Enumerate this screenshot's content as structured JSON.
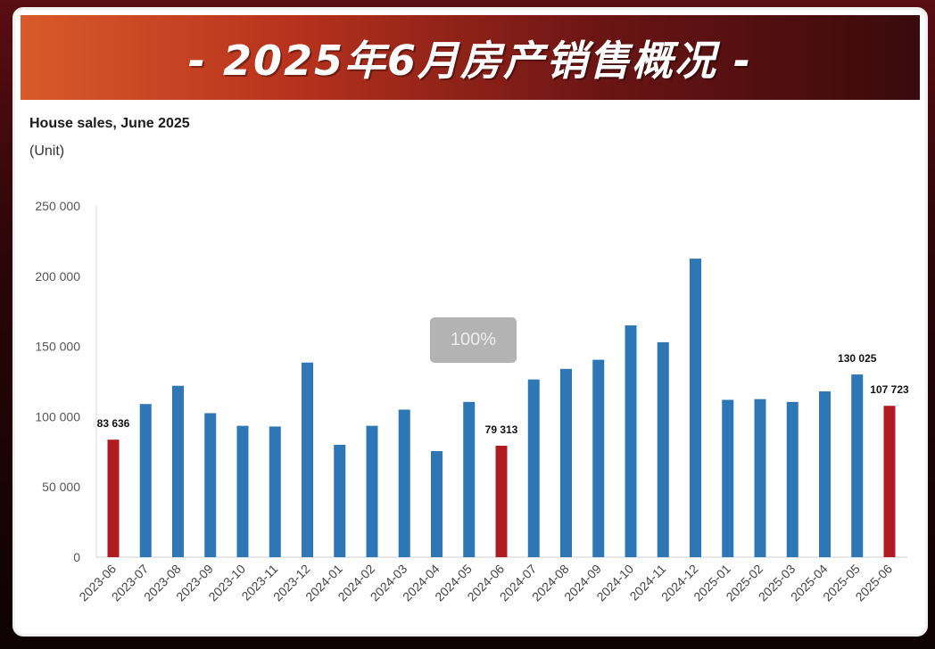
{
  "banner": {
    "title": "- 2025年6月房产销售概况 -"
  },
  "zoom": {
    "label": "100%"
  },
  "colors": {
    "normal": "#2e77b7",
    "highlight": "#b01a21"
  },
  "chart_data": {
    "type": "bar",
    "title": "House sales, June 2025",
    "ylabel": "(Unit)",
    "xlabel": "",
    "ylim": [
      0,
      250000
    ],
    "yticks": [
      {
        "value": 0,
        "label": "0"
      },
      {
        "value": 50000,
        "label": "50 000"
      },
      {
        "value": 100000,
        "label": "100 000"
      },
      {
        "value": 150000,
        "label": "150 000"
      },
      {
        "value": 200000,
        "label": "200 000"
      },
      {
        "value": 250000,
        "label": "250 000"
      }
    ],
    "grid": false,
    "categories": [
      "2023-06",
      "2023-07",
      "2023-08",
      "2023-09",
      "2023-10",
      "2023-11",
      "2023-12",
      "2024-01",
      "2024-02",
      "2024-03",
      "2024-04",
      "2024-05",
      "2024-06",
      "2024-07",
      "2024-08",
      "2024-09",
      "2024-10",
      "2024-11",
      "2024-12",
      "2025-01",
      "2025-02",
      "2025-03",
      "2025-04",
      "2025-05",
      "2025-06"
    ],
    "values": [
      83636,
      109000,
      122000,
      102500,
      93500,
      93000,
      138500,
      80000,
      93500,
      105000,
      75500,
      110500,
      79313,
      126500,
      134000,
      140500,
      165000,
      153000,
      212500,
      112000,
      112500,
      110500,
      118000,
      130025,
      107723
    ],
    "highlighted": [
      true,
      false,
      false,
      false,
      false,
      false,
      false,
      false,
      false,
      false,
      false,
      false,
      true,
      false,
      false,
      false,
      false,
      false,
      false,
      false,
      false,
      false,
      false,
      false,
      true
    ],
    "data_labels": [
      "83 636",
      "",
      "",
      "",
      "",
      "",
      "",
      "",
      "",
      "",
      "",
      "",
      "79 313",
      "",
      "",
      "",
      "",
      "",
      "",
      "",
      "",
      "",
      "",
      "130 025",
      "107 723"
    ]
  }
}
